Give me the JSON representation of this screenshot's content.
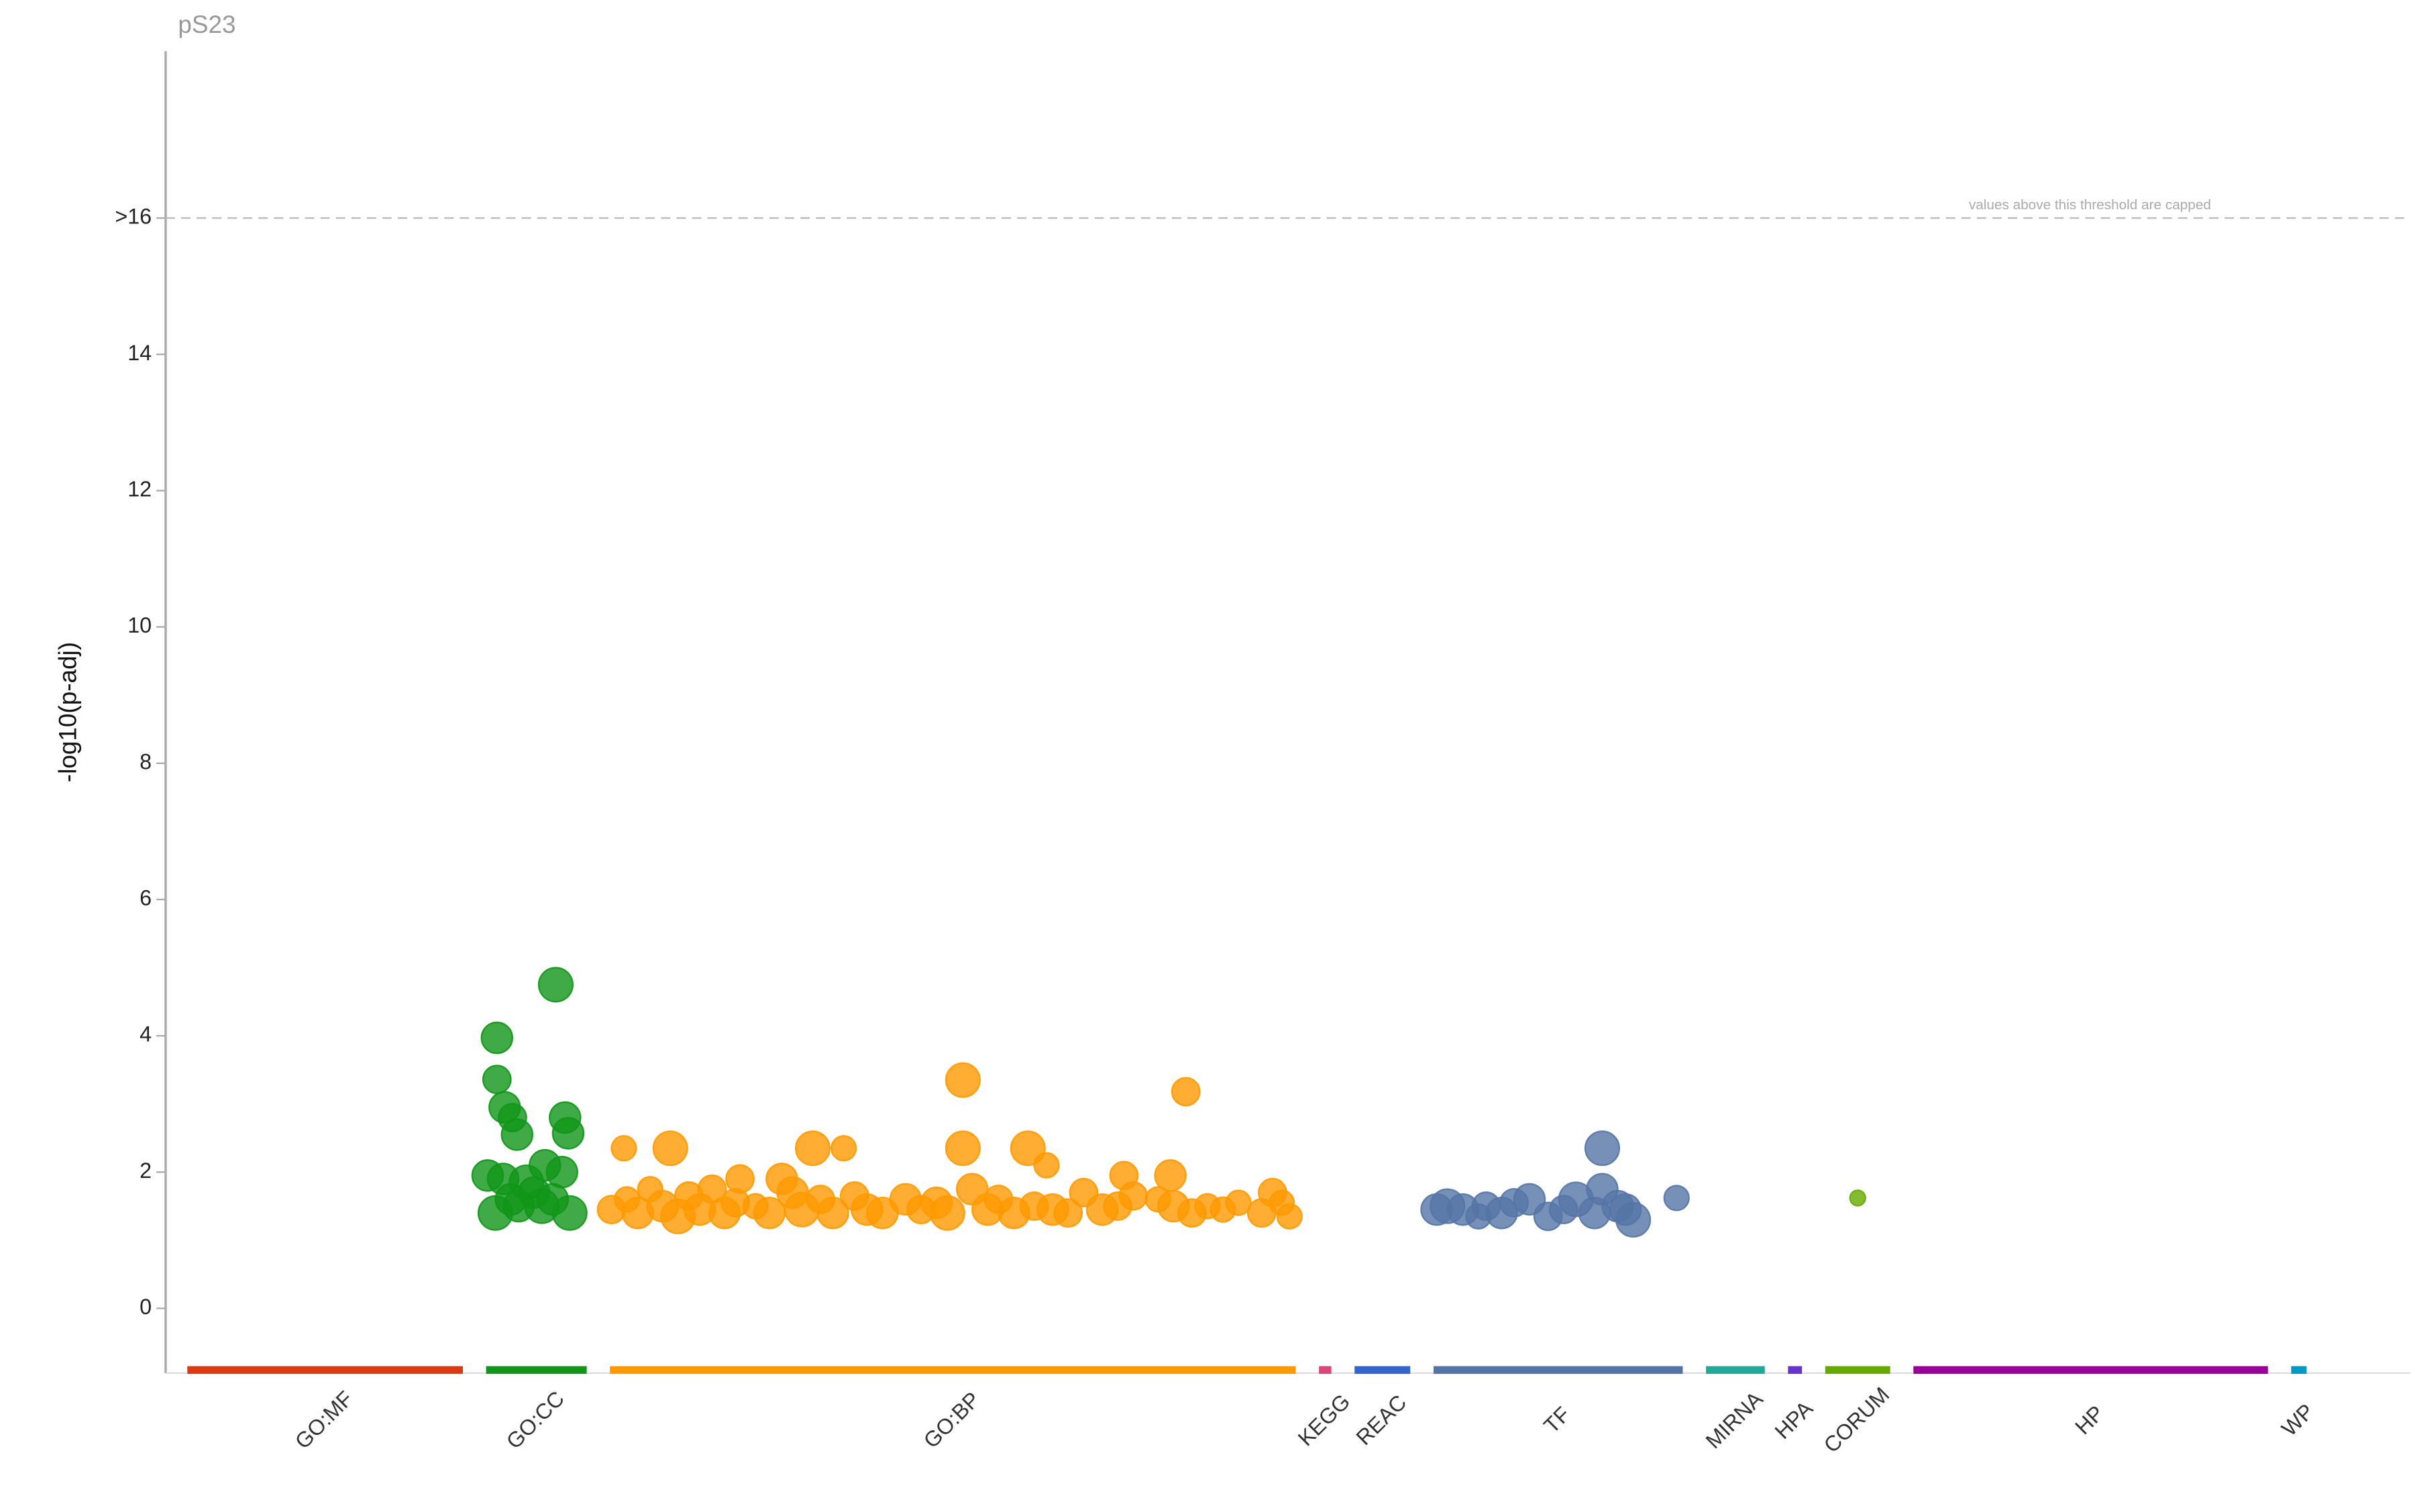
{
  "chart_data": {
    "type": "scatter",
    "title": "pS23",
    "ylabel": "-log10(p-adj)",
    "annotation": "values above this threshold are capped",
    "xlim": [
      0,
      1450
    ],
    "ylim": [
      -0.95,
      18.45
    ],
    "yticks": [
      0,
      2,
      4,
      6,
      8,
      10,
      12,
      14,
      {
        "value": 16,
        "label": ">16"
      }
    ],
    "series": [
      {
        "name": "GO:MF",
        "color": "#dc3912",
        "xrange": [
          14,
          192
        ],
        "x": [],
        "values": [],
        "sizes": []
      },
      {
        "name": "GO:CC",
        "color": "#109618",
        "xrange": [
          207,
          272
        ],
        "x": [
          252,
          214,
          214,
          219,
          224,
          227,
          258,
          260,
          208,
          218,
          233,
          245,
          256,
          213,
          228,
          243,
          261,
          238,
          250,
          223
        ],
        "values": [
          4.75,
          3.97,
          3.36,
          2.95,
          2.8,
          2.55,
          2.8,
          2.57,
          1.95,
          1.9,
          1.85,
          2.1,
          2.0,
          1.4,
          1.5,
          1.5,
          1.4,
          1.7,
          1.6,
          1.6
        ],
        "sizes": [
          11,
          10,
          9,
          10,
          9,
          10,
          10,
          10,
          10,
          10,
          11,
          10,
          10,
          11,
          10,
          11,
          11,
          10,
          10,
          10
        ]
      },
      {
        "name": "GO:BP",
        "color": "#ff9900",
        "xrange": [
          287,
          730
        ],
        "x": [
          296,
          326,
          418,
          438,
          515,
          515,
          557,
          569,
          659,
          619,
          649,
          398,
          371,
          288,
          298,
          305,
          313,
          321,
          331,
          338,
          345,
          353,
          361,
          368,
          381,
          390,
          405,
          411,
          423,
          431,
          445,
          453,
          463,
          478,
          488,
          498,
          505,
          521,
          531,
          538,
          548,
          561,
          573,
          583,
          593,
          605,
          615,
          625,
          641,
          651,
          663,
          673,
          683,
          693,
          708,
          715,
          721,
          726
        ],
        "values": [
          2.35,
          2.35,
          2.35,
          2.35,
          3.35,
          2.35,
          2.35,
          2.1,
          3.18,
          1.95,
          1.95,
          1.9,
          1.9,
          1.45,
          1.6,
          1.4,
          1.75,
          1.5,
          1.35,
          1.65,
          1.45,
          1.75,
          1.4,
          1.55,
          1.5,
          1.4,
          1.7,
          1.45,
          1.6,
          1.4,
          1.65,
          1.45,
          1.4,
          1.6,
          1.45,
          1.55,
          1.4,
          1.75,
          1.45,
          1.6,
          1.4,
          1.5,
          1.45,
          1.4,
          1.7,
          1.45,
          1.5,
          1.65,
          1.6,
          1.5,
          1.4,
          1.5,
          1.45,
          1.55,
          1.4,
          1.7,
          1.55,
          1.35
        ],
        "sizes": [
          8,
          11,
          11,
          8,
          11,
          11,
          11,
          8,
          9,
          9,
          10,
          10,
          9,
          9,
          8,
          10,
          8,
          10,
          11,
          9,
          10,
          9,
          10,
          9,
          8,
          10,
          10,
          11,
          9,
          10,
          9,
          10,
          10,
          10,
          9,
          10,
          11,
          10,
          10,
          9,
          10,
          9,
          10,
          9,
          9,
          10,
          9,
          9,
          8,
          10,
          9,
          8,
          8,
          8,
          9,
          9,
          8,
          8
        ]
      },
      {
        "name": "KEGG",
        "color": "#dd4477",
        "xrange": [
          745,
          753
        ],
        "x": [],
        "values": [],
        "sizes": []
      },
      {
        "name": "REAC",
        "color": "#3366cc",
        "xrange": [
          768,
          804
        ],
        "x": [],
        "values": [],
        "sizes": []
      },
      {
        "name": "TF",
        "color": "#5574a6",
        "xrange": [
          819,
          980
        ],
        "x": [
          828,
          838,
          853,
          863,
          881,
          893,
          911,
          923,
          928,
          928,
          938,
          948,
          976,
          821,
          848,
          871,
          903,
          943
        ],
        "values": [
          1.5,
          1.45,
          1.5,
          1.4,
          1.6,
          1.35,
          1.6,
          1.4,
          2.35,
          1.75,
          1.5,
          1.3,
          1.62,
          1.45,
          1.35,
          1.55,
          1.45,
          1.45
        ],
        "sizes": [
          11,
          10,
          9,
          10,
          10,
          9,
          11,
          10,
          11,
          10,
          10,
          11,
          8,
          10,
          8,
          9,
          9,
          10
        ]
      },
      {
        "name": "MIRNA",
        "color": "#22aa99",
        "xrange": [
          995,
          1033
        ],
        "x": [],
        "values": [],
        "sizes": []
      },
      {
        "name": "HPA",
        "color": "#6633cc",
        "xrange": [
          1048,
          1057
        ],
        "x": [],
        "values": [],
        "sizes": []
      },
      {
        "name": "CORUM",
        "color": "#66aa00",
        "xrange": [
          1072,
          1114
        ],
        "x": [
          1093
        ],
        "values": [
          1.62
        ],
        "sizes": [
          5
        ]
      },
      {
        "name": "HP",
        "color": "#990099",
        "xrange": [
          1129,
          1358
        ],
        "x": [],
        "values": [],
        "sizes": []
      },
      {
        "name": "WP",
        "color": "#0099c6",
        "xrange": [
          1373,
          1383
        ],
        "x": [],
        "values": [],
        "sizes": []
      }
    ]
  }
}
